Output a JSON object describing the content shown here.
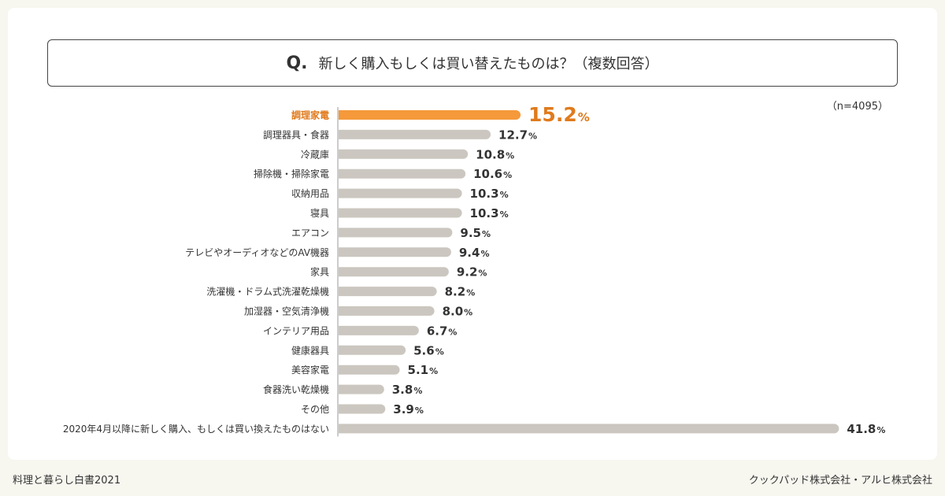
{
  "question": {
    "mark": "Q.",
    "text": "新しく購入もしくは買い替えたものは？（複数回答）"
  },
  "sample_size": "（n=4095）",
  "footer": {
    "left": "料理と暮らし白書2021",
    "right": "クックパッド株式会社・アルヒ株式会社"
  },
  "colors": {
    "highlight": "#f5993a",
    "highlight_text": "#e07a1c",
    "bar": "#cbc7c0",
    "label": "#333333",
    "axis": "#999999"
  },
  "chart_data": {
    "type": "bar",
    "orientation": "horizontal",
    "unit": "%",
    "xlim": [
      0,
      45
    ],
    "highlight_index": 0,
    "categories": [
      "調理家電",
      "調理器具・食器",
      "冷蔵庫",
      "掃除機・掃除家電",
      "収納用品",
      "寝具",
      "エアコン",
      "テレビやオーディオなどのAV機器",
      "家具",
      "洗濯機・ドラム式洗濯乾燥機",
      "加湿器・空気清浄機",
      "インテリア用品",
      "健康器具",
      "美容家電",
      "食器洗い乾燥機",
      "その他",
      "2020年4月以降に新しく購入、もしくは買い換えたものはない"
    ],
    "values": [
      15.2,
      12.7,
      10.8,
      10.6,
      10.3,
      10.3,
      9.5,
      9.4,
      9.2,
      8.2,
      8.0,
      6.7,
      5.6,
      5.1,
      3.8,
      3.9,
      41.8
    ],
    "value_labels": [
      "15.2",
      "12.7",
      "10.8",
      "10.6",
      "10.3",
      "10.3",
      "9.5",
      "9.4",
      "9.2",
      "8.2",
      "8.0",
      "6.7",
      "5.6",
      "5.1",
      "3.8",
      "3.9",
      "41.8"
    ],
    "grid": false
  }
}
